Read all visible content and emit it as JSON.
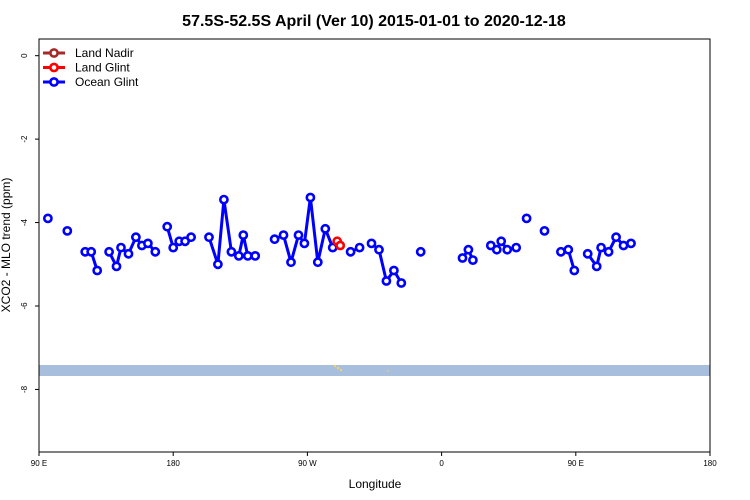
{
  "chart_data": {
    "type": "line",
    "title": "57.5S-52.5S April (Ver 10)   2015-01-01 to 2020-12-18",
    "xlabel": "Longitude",
    "ylabel": "XCO2 - MLO trend (ppm)",
    "xlim": [
      90,
      450
    ],
    "ylim": [
      -9.5,
      0.4
    ],
    "x_ticks": [
      {
        "value": 90,
        "label": "90 E"
      },
      {
        "value": 180,
        "label": "180"
      },
      {
        "value": 270,
        "label": "90 W"
      },
      {
        "value": 360,
        "label": "0"
      },
      {
        "value": 450,
        "label": "90 E"
      },
      {
        "value": 540,
        "label": "180"
      }
    ],
    "y_ticks": [
      {
        "value": 0,
        "label": "0"
      },
      {
        "value": -2,
        "label": "-2"
      },
      {
        "value": -4,
        "label": "-4"
      },
      {
        "value": -6,
        "label": "-6"
      },
      {
        "value": -8,
        "label": "-8"
      }
    ],
    "legend_position": "top-left",
    "grid": false,
    "series": [
      {
        "name": "Land Nadir",
        "color": "#a52a2a",
        "segments": []
      },
      {
        "name": "Land Glint",
        "color": "#ff0000",
        "segments": [
          [
            [
              290,
              -4.45
            ],
            [
              292,
              -4.55
            ]
          ]
        ]
      },
      {
        "name": "Ocean Glint",
        "color": "#0000ff",
        "segments": [
          [
            [
              96,
              -3.9
            ]
          ],
          [
            [
              109,
              -4.2
            ]
          ],
          [
            [
              121,
              -4.7
            ],
            [
              125,
              -4.7
            ],
            [
              129,
              -5.15
            ]
          ],
          [
            [
              137,
              -4.7
            ],
            [
              142,
              -5.05
            ],
            [
              145,
              -4.6
            ],
            [
              150,
              -4.75
            ],
            [
              155,
              -4.35
            ],
            [
              159,
              -4.55
            ],
            [
              163,
              -4.5
            ],
            [
              168,
              -4.7
            ]
          ],
          [
            [
              176,
              -4.1
            ],
            [
              180,
              -4.6
            ],
            [
              184,
              -4.45
            ],
            [
              188,
              -4.45
            ],
            [
              192,
              -4.35
            ]
          ],
          [
            [
              204,
              -4.35
            ],
            [
              210,
              -5.0
            ],
            [
              214,
              -3.45
            ],
            [
              219,
              -4.7
            ],
            [
              224,
              -4.8
            ],
            [
              227,
              -4.3
            ],
            [
              230,
              -4.8
            ],
            [
              235,
              -4.8
            ]
          ],
          [
            [
              248,
              -4.4
            ],
            [
              254,
              -4.3
            ],
            [
              259,
              -4.95
            ],
            [
              264,
              -4.3
            ],
            [
              268,
              -4.5
            ],
            [
              272,
              -3.4
            ],
            [
              277,
              -4.95
            ],
            [
              282,
              -4.15
            ],
            [
              287,
              -4.6
            ]
          ],
          [
            [
              299,
              -4.7
            ],
            [
              305,
              -4.6
            ]
          ],
          [
            [
              313,
              -4.5
            ],
            [
              318,
              -4.65
            ],
            [
              323,
              -5.4
            ],
            [
              328,
              -5.15
            ],
            [
              333,
              -5.45
            ]
          ],
          [
            [
              346,
              -4.7
            ]
          ],
          [
            [
              374,
              -4.85
            ],
            [
              378,
              -4.65
            ],
            [
              381,
              -4.9
            ]
          ],
          [
            [
              393,
              -4.55
            ],
            [
              397,
              -4.65
            ],
            [
              400,
              -4.45
            ],
            [
              404,
              -4.65
            ],
            [
              410,
              -4.6
            ]
          ],
          [
            [
              417,
              -3.9
            ]
          ],
          [
            [
              429,
              -4.2
            ]
          ],
          [
            [
              440,
              -4.7
            ],
            [
              445,
              -4.65
            ],
            [
              449,
              -5.15
            ]
          ],
          [
            [
              458,
              -4.75
            ],
            [
              464,
              -5.05
            ],
            [
              467,
              -4.6
            ],
            [
              472,
              -4.7
            ],
            [
              477,
              -4.35
            ],
            [
              482,
              -4.55
            ],
            [
              487,
              -4.5
            ]
          ]
        ]
      }
    ]
  }
}
